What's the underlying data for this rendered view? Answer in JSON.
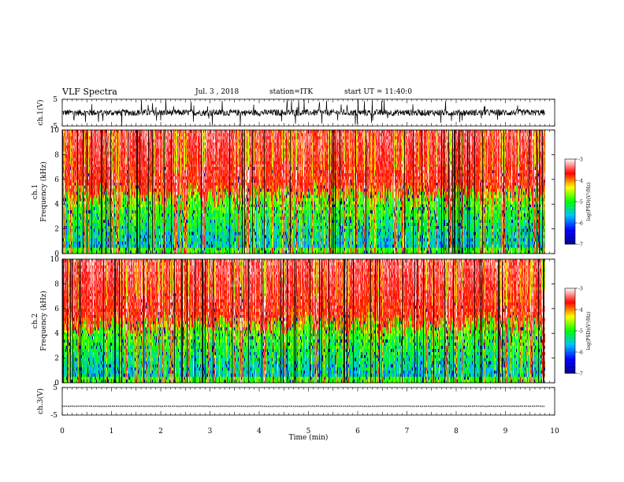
{
  "header": {
    "title": "VLF Spectra",
    "date": "Jul. 3 , 2018",
    "station": "station=ITK",
    "start": "start UT = 11:40:0"
  },
  "chart_data": [
    {
      "type": "line",
      "panel": "ch1-waveform",
      "ylabel": "ch.1(V)",
      "ylim": [
        -5,
        5
      ],
      "yticks": [
        "5",
        "-5"
      ],
      "xlim": [
        0,
        10
      ],
      "description_values": {
        "baseline": 0,
        "typical_amplitude": 1.2,
        "spike_max": 5
      }
    },
    {
      "type": "heatmap",
      "panel": "ch1-spectrogram",
      "ylabel_line1": "ch.1",
      "ylabel_line2": "Frequency (kHz)",
      "ylim": [
        0,
        10
      ],
      "yticks": [
        "0",
        "2",
        "4",
        "6",
        "8",
        "10"
      ],
      "xlim": [
        0,
        10
      ],
      "data_end_min": 9.8,
      "colorbar": {
        "label": "log(PSD)(V²/Hz)",
        "range": [
          -7,
          -3
        ],
        "ticks": [
          "-3",
          "-4",
          "-5",
          "-6",
          "-7"
        ]
      }
    },
    {
      "type": "heatmap",
      "panel": "ch2-spectrogram",
      "ylabel_line1": "ch.2",
      "ylabel_line2": "Frequency (kHz)",
      "ylim": [
        0,
        10
      ],
      "yticks": [
        "0",
        "2",
        "4",
        "6",
        "8",
        "10"
      ],
      "xlim": [
        0,
        10
      ],
      "data_end_min": 9.8,
      "colorbar": {
        "label": "log(PSD)(V²/Hz)",
        "range": [
          -7,
          -3
        ],
        "ticks": [
          "-3",
          "-4",
          "-5",
          "-6",
          "-7"
        ]
      }
    },
    {
      "type": "line",
      "panel": "ch3-waveform",
      "ylabel": "ch.3(V)",
      "ylim": [
        -5,
        5
      ],
      "yticks": [
        "5",
        "-5"
      ],
      "xlim": [
        0,
        10
      ],
      "description_values": {
        "constant_level": -1.8
      }
    }
  ],
  "xaxis": {
    "label": "Time (min)",
    "ticks": [
      "0",
      "1",
      "2",
      "3",
      "4",
      "5",
      "6",
      "7",
      "8",
      "9",
      "10"
    ]
  },
  "colors": {
    "colormap": [
      "#00008b",
      "#0000ff",
      "#00bfff",
      "#00ff00",
      "#ffff00",
      "#ff0000",
      "#ffffff"
    ],
    "line": "#000000"
  }
}
